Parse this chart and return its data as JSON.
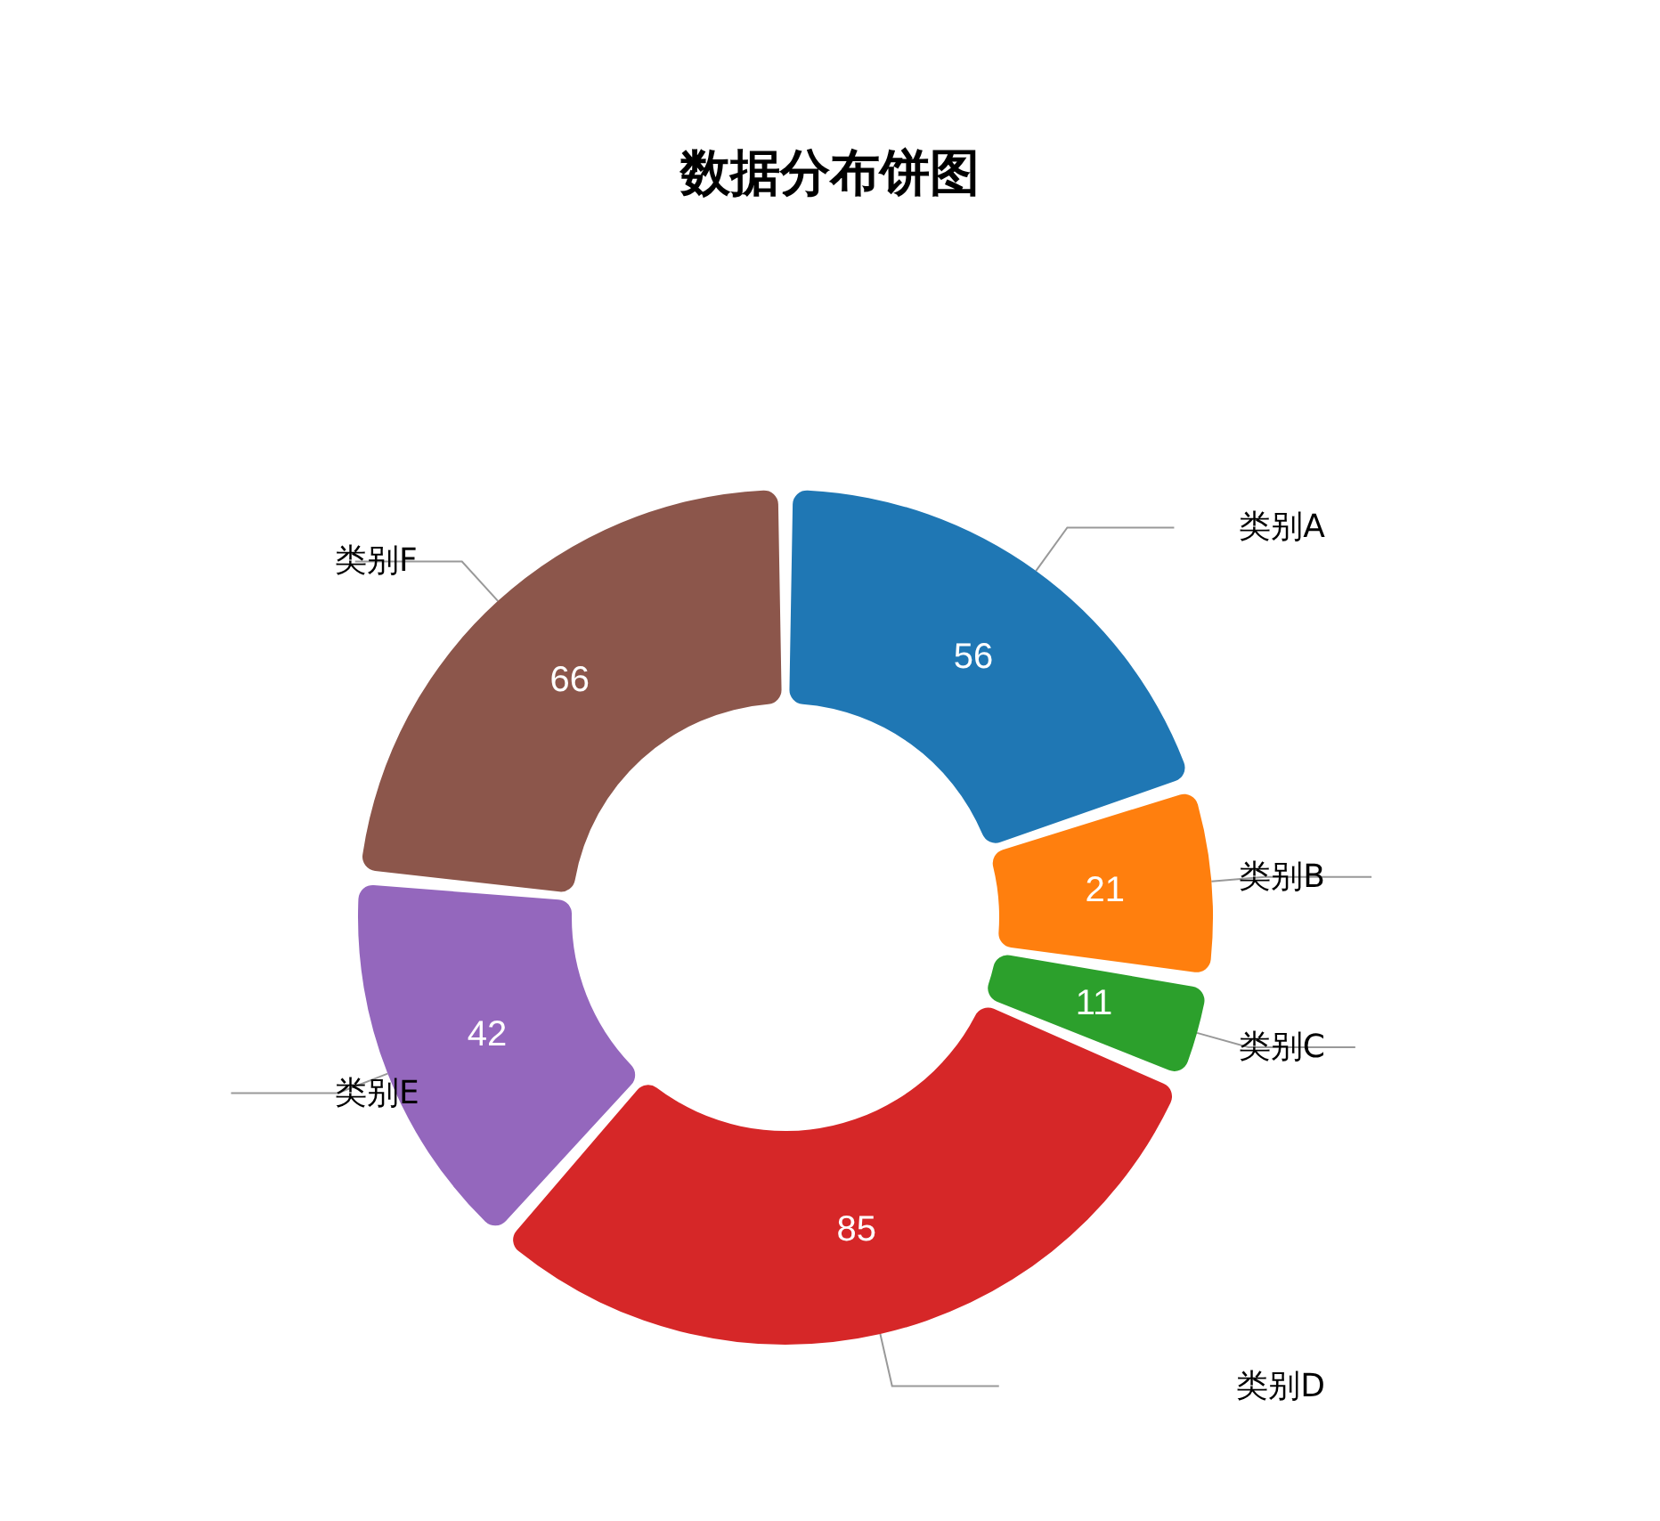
{
  "chart_data": {
    "type": "donut",
    "title": "数据分布饼图",
    "categories": [
      "类别A",
      "类别B",
      "类别C",
      "类别D",
      "类别E",
      "类别F"
    ],
    "values": [
      56,
      21,
      11,
      85,
      42,
      66
    ],
    "colors": [
      "#1f77b4",
      "#ff7f0e",
      "#2ca02c",
      "#d62728",
      "#9467bd",
      "#8c564b"
    ],
    "data_labels": true
  }
}
